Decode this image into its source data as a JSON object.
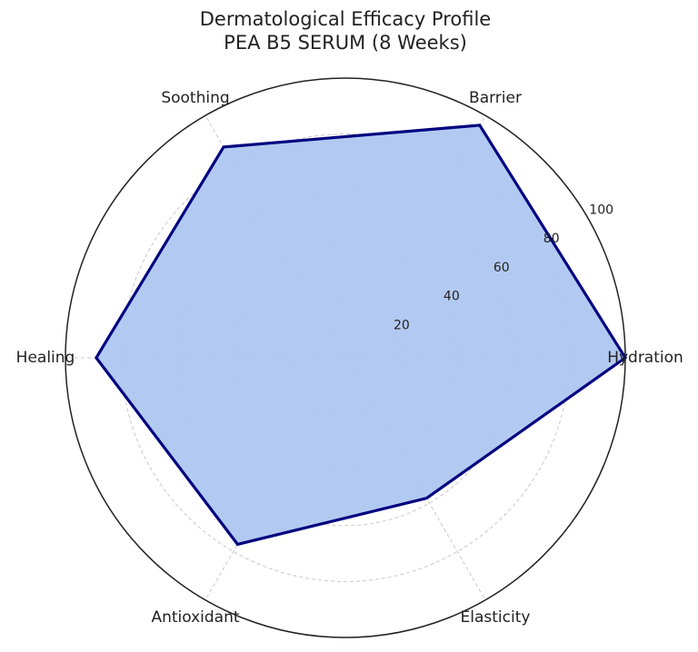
{
  "chart_data": {
    "type": "radar",
    "title": "Dermatological Efficacy Profile",
    "subtitle": "PEA B5 SERUM (8 Weeks)",
    "categories": [
      "Hydration",
      "Barrier",
      "Soothing",
      "Healing",
      "Antioxidant",
      "Elasticity"
    ],
    "values": [
      100,
      96,
      87,
      89,
      77,
      58
    ],
    "color": "#aec7f0",
    "line_color": "#000080",
    "ylim": [
      0,
      100
    ],
    "yticks": [
      20,
      40,
      60,
      80,
      100
    ],
    "grid": true
  }
}
